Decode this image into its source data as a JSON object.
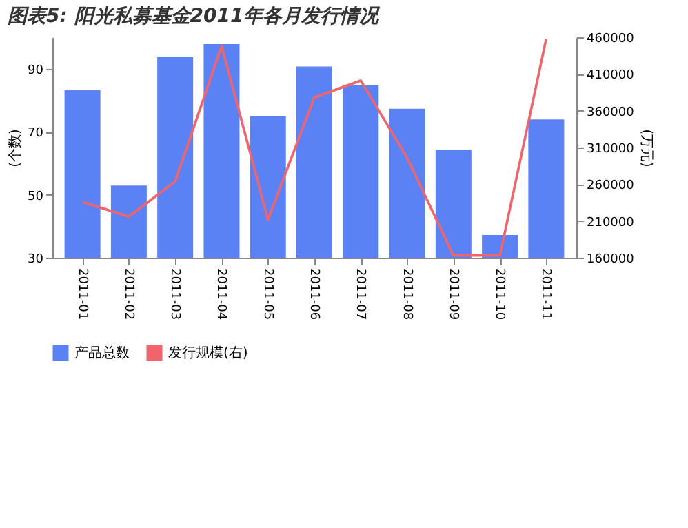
{
  "chart_data": {
    "type": "bar",
    "title": "图表5: 阳光私募基金2011年各月发行情况",
    "categories": [
      "2011-01",
      "2011-02",
      "2011-03",
      "2011-04",
      "2011-05",
      "2011-06",
      "2011-07",
      "2011-08",
      "2011-09",
      "2011-10",
      "2011-11"
    ],
    "series": [
      {
        "name": "产品总数",
        "color": "#5b82f5",
        "values": [
          83.2,
          52.9,
          93.9,
          97.8,
          75,
          90.7,
          84.8,
          77.3,
          64.3,
          37.2,
          73.9
        ]
      },
      {
        "name": "发行规模(右)",
        "color": "#f0646c",
        "type": "line",
        "axis": "y2",
        "values": [
          236000,
          216000,
          264000,
          448000,
          212000,
          378000,
          401000,
          296000,
          163000,
          163000,
          458000
        ]
      }
    ],
    "ylabel": "(个数)",
    "y2label": "(万元)",
    "ylim": [
      30,
      100
    ],
    "yticks": [
      30,
      50,
      70,
      90
    ],
    "y2lim": [
      160000,
      460000
    ],
    "y2ticks": [
      160000,
      210000,
      260000,
      310000,
      360000,
      410000,
      460000
    ],
    "grid": false,
    "legend": "bottom"
  }
}
